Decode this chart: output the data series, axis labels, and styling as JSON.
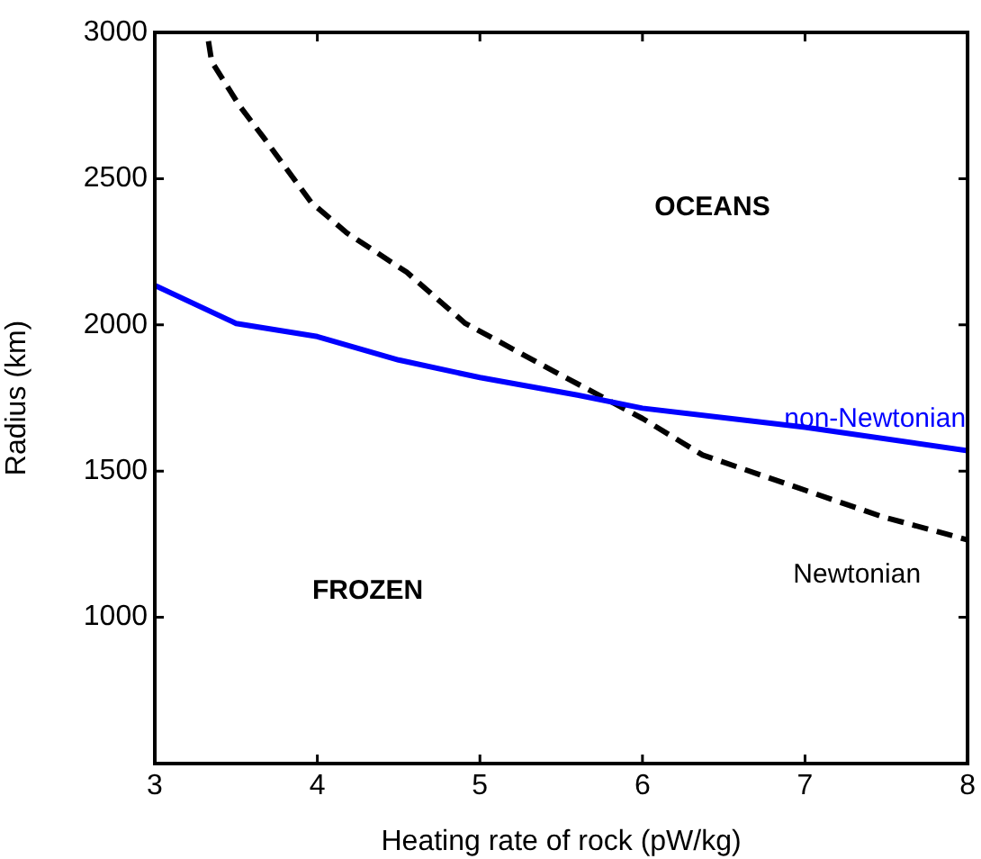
{
  "chart_data": {
    "type": "line",
    "xlabel": "Heating rate of rock (pW/kg)",
    "ylabel": "Radius (km)",
    "xlim": [
      3,
      8
    ],
    "xticks": [
      3,
      4,
      5,
      6,
      7,
      8
    ],
    "ylim": [
      500,
      3000
    ],
    "yticks": [
      1000,
      1500,
      2000,
      2500,
      3000
    ],
    "grid": false,
    "legend": false,
    "marker": "none",
    "series": [
      {
        "name": "non-Newtonian",
        "color": "#0000ff",
        "line_style": "solid",
        "x": [
          3,
          3.5,
          4,
          4.5,
          5,
          5.6,
          6,
          7,
          8
        ],
        "values": [
          2135,
          2005,
          1960,
          1880,
          1820,
          1760,
          1715,
          1650,
          1570
        ]
      },
      {
        "name": "Newtonian",
        "color": "#000000",
        "line_style": "dashed",
        "x": [
          3.33,
          3.35,
          3.52,
          3.67,
          3.96,
          4.18,
          4.55,
          4.91,
          5.46,
          6,
          6.37,
          6.92,
          7.47,
          8
        ],
        "values": [
          2970,
          2900,
          2750,
          2640,
          2420,
          2315,
          2180,
          2005,
          1840,
          1680,
          1555,
          1450,
          1345,
          1265
        ]
      }
    ],
    "annotations": [
      "OCEANS",
      "FROZEN"
    ]
  }
}
